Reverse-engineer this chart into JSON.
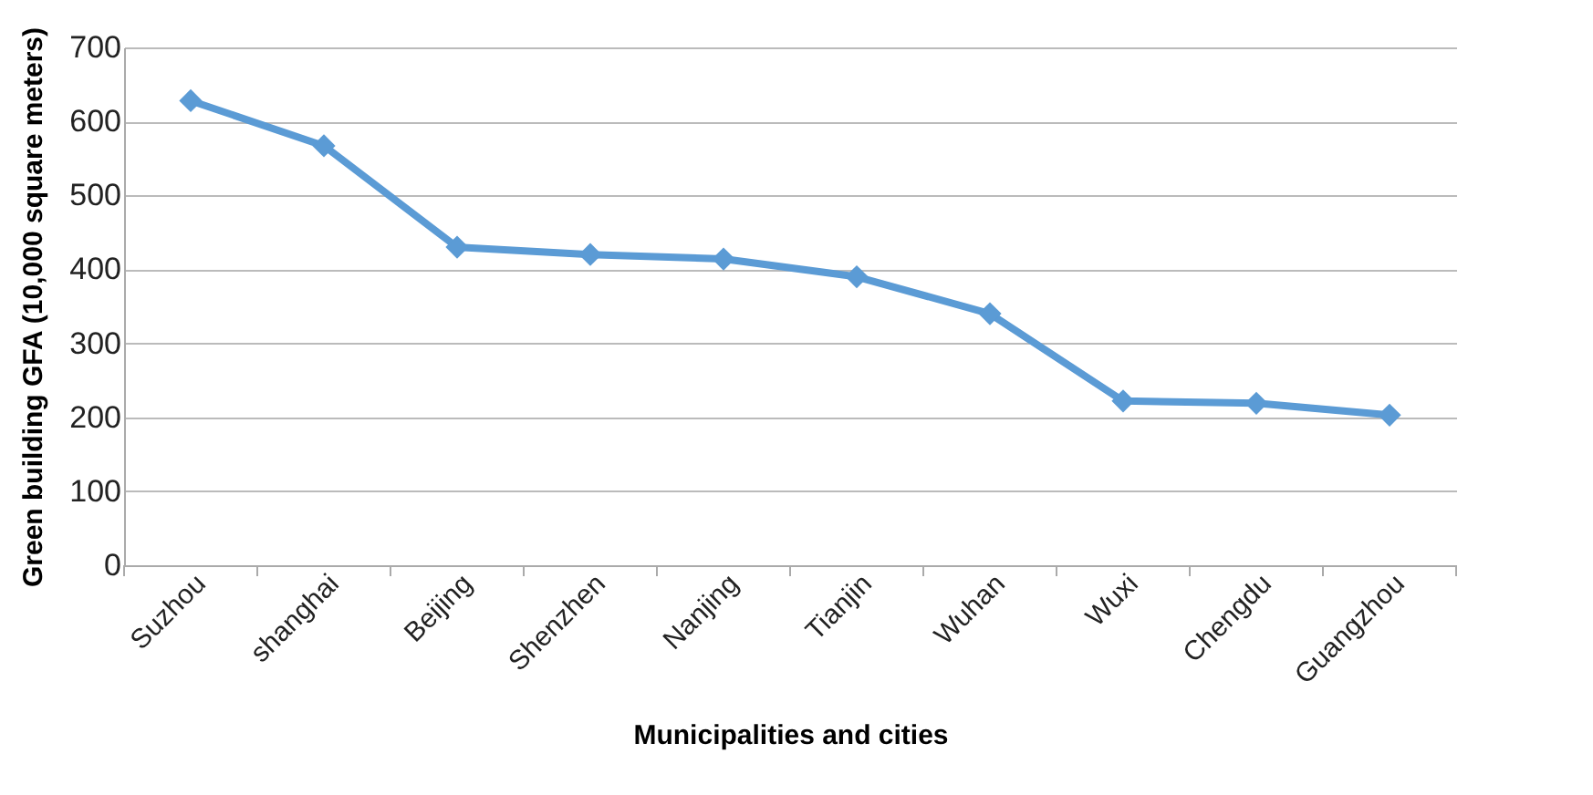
{
  "chart_data": {
    "type": "line",
    "xlabel": "Municipalities and cities",
    "ylabel": "Green building GFA (10,000 square meters)",
    "categories": [
      "Suzhou",
      "shanghai",
      "Beijing",
      "Shenzhen",
      "Nanjing",
      "Tianjin",
      "Wuhan",
      "Wuxi",
      "Chengdu",
      "Guangzhou"
    ],
    "series": [
      {
        "color": "#5b9bd5",
        "values": [
          628,
          567,
          430,
          420,
          414,
          390,
          340,
          222,
          219,
          203
        ]
      }
    ],
    "ylim": [
      0,
      700
    ],
    "yticks": [
      0,
      100,
      200,
      300,
      400,
      500,
      600,
      700
    ],
    "grid": "y",
    "marker": "diamond",
    "line_style": "solid"
  }
}
